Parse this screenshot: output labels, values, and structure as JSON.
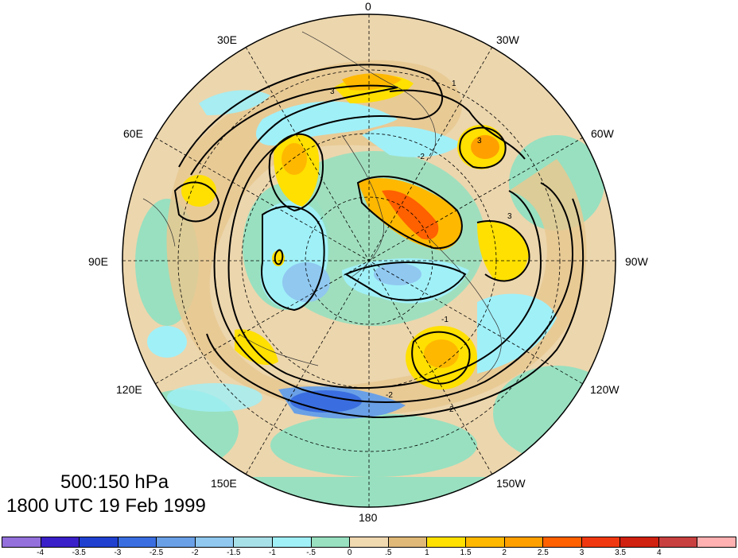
{
  "title": {
    "line1": "500:150 hPa",
    "line2": "1800 UTC 19 Feb 1999"
  },
  "longitude_labels": {
    "lon_0": "0",
    "lon_30w": "30W",
    "lon_60w": "60W",
    "lon_90w": "90W",
    "lon_120w": "120W",
    "lon_150w": "150W",
    "lon_180": "180",
    "lon_150e": "150E",
    "lon_120e": "120E",
    "lon_90e": "90E",
    "lon_60e": "60E",
    "lon_30e": "30E"
  },
  "contour_labels": [
    "-1",
    "-2",
    "-3",
    "1",
    "2",
    "3"
  ],
  "colorbar": {
    "colors": [
      "#9370db",
      "#3a20c8",
      "#2040d0",
      "#3a6ee0",
      "#6aa0e6",
      "#90c8f0",
      "#a8e0e8",
      "#a0f0f8",
      "#98e0c0",
      "#f0d8b0",
      "#e0b878",
      "#ffe000",
      "#ffb800",
      "#ffa000",
      "#ff6000",
      "#f03810",
      "#d02010",
      "#c84040",
      "#ffb0b0"
    ],
    "ticks": [
      "-4",
      "-3.5",
      "-3",
      "-2.5",
      "-2",
      "-1.5",
      "-1",
      "-.5",
      "0",
      ".5",
      "1",
      "1.5",
      "2",
      "2.5",
      "3",
      "3.5",
      "4"
    ]
  }
}
